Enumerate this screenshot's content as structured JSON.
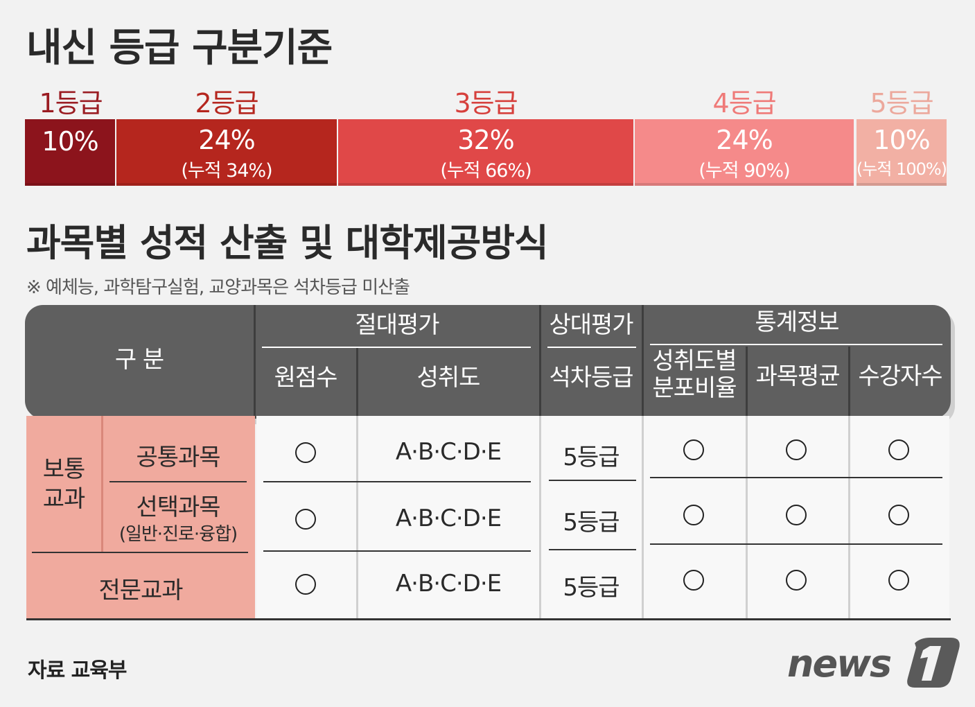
{
  "title1": "내신 등급 구분기준",
  "title2": "과목별 성적 산출 및 대학제공방식",
  "note": "※ 예체능, 과학탐구실험, 교양과목은 석차등급 미산출",
  "grades": [
    {
      "label": "1등급",
      "pct": "10%",
      "cum": "",
      "color": "#8c141c",
      "labelColor": "#9a1c22"
    },
    {
      "label": "2등급",
      "pct": "24%",
      "cum": "(누적 34%)",
      "color": "#b5261e",
      "labelColor": "#b5261e"
    },
    {
      "label": "3등급",
      "pct": "32%",
      "cum": "(누적 66%)",
      "color": "#e04848",
      "labelColor": "#d6403c"
    },
    {
      "label": "4등급",
      "pct": "24%",
      "cum": "(누적 90%)",
      "color": "#f58a8a",
      "labelColor": "#ef7a78"
    },
    {
      "label": "5등급",
      "pct": "10%",
      "cum": "(누적 100%)",
      "color": "#f2b0a4",
      "labelColor": "#eca89c"
    }
  ],
  "table": {
    "header": {
      "category": "구 분",
      "absolute": "절대평가",
      "relative": "상대평가",
      "stats": "통계정보",
      "raw_score": "원점수",
      "achievement": "성취도",
      "rank_grade": "석차등급",
      "ratio_line1": "성취도별",
      "ratio_line2": "분포비율",
      "subject_avg": "과목평균",
      "enrollment": "수강자수"
    },
    "category_general": {
      "line1": "보통",
      "line2": "교과"
    },
    "rows": [
      {
        "name": "공통과목",
        "sub": "",
        "achievement": "A·B·C·D·E",
        "grade": "5등급"
      },
      {
        "name": "선택과목",
        "sub": "(일반·진로·융합)",
        "achievement": "A·B·C·D·E",
        "grade": "5등급"
      },
      {
        "name": "전문교과",
        "sub": "",
        "achievement": "A·B·C·D·E",
        "grade": "5등급"
      }
    ]
  },
  "source": "자료 교육부",
  "logo_text": "news1"
}
